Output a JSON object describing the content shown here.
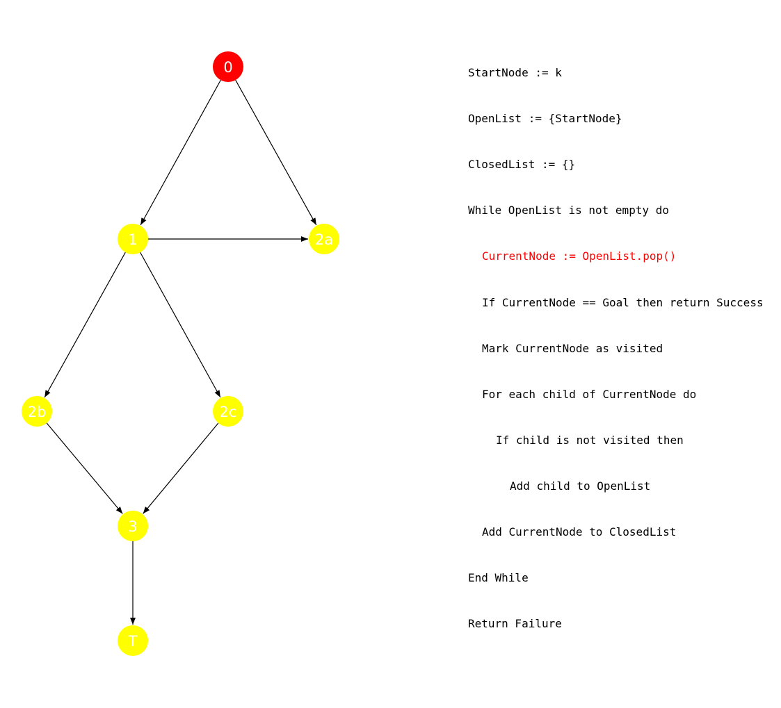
{
  "graph": {
    "node_colors": {
      "current": "#ff0000",
      "default": "#ffff00",
      "label": "#ffffff",
      "edge": "#000000"
    },
    "nodes": [
      {
        "id": "0",
        "label": "0",
        "state": "current"
      },
      {
        "id": "1",
        "label": "1",
        "state": "default"
      },
      {
        "id": "2a",
        "label": "2a",
        "state": "default"
      },
      {
        "id": "2b",
        "label": "2b",
        "state": "default"
      },
      {
        "id": "2c",
        "label": "2c",
        "state": "default"
      },
      {
        "id": "3",
        "label": "3",
        "state": "default"
      },
      {
        "id": "T",
        "label": "T",
        "state": "default"
      }
    ],
    "edges": [
      {
        "from": "0",
        "to": "1"
      },
      {
        "from": "0",
        "to": "2a"
      },
      {
        "from": "1",
        "to": "2a"
      },
      {
        "from": "1",
        "to": "2b"
      },
      {
        "from": "1",
        "to": "2c"
      },
      {
        "from": "2b",
        "to": "3"
      },
      {
        "from": "2c",
        "to": "3"
      },
      {
        "from": "3",
        "to": "T"
      }
    ]
  },
  "pseudocode": {
    "highlight_color": "#ff0000",
    "lines": [
      {
        "text": "StartNode := k",
        "indent": 0,
        "highlighted": false
      },
      {
        "text": "OpenList := {StartNode}",
        "indent": 0,
        "highlighted": false
      },
      {
        "text": "ClosedList := {}",
        "indent": 0,
        "highlighted": false
      },
      {
        "text": "While OpenList is not empty do",
        "indent": 0,
        "highlighted": false
      },
      {
        "text": "CurrentNode := OpenList.pop()",
        "indent": 1,
        "highlighted": true
      },
      {
        "text": "If CurrentNode == Goal then return Success",
        "indent": 1,
        "highlighted": false
      },
      {
        "text": "Mark CurrentNode as visited",
        "indent": 1,
        "highlighted": false
      },
      {
        "text": "For each child of CurrentNode do",
        "indent": 1,
        "highlighted": false
      },
      {
        "text": "If child is not visited then",
        "indent": 2,
        "highlighted": false
      },
      {
        "text": "Add child to OpenList",
        "indent": 3,
        "highlighted": false
      },
      {
        "text": "Add CurrentNode to ClosedList",
        "indent": 1,
        "highlighted": false
      },
      {
        "text": "End While",
        "indent": 0,
        "highlighted": false
      },
      {
        "text": "Return Failure",
        "indent": 0,
        "highlighted": false
      }
    ]
  }
}
